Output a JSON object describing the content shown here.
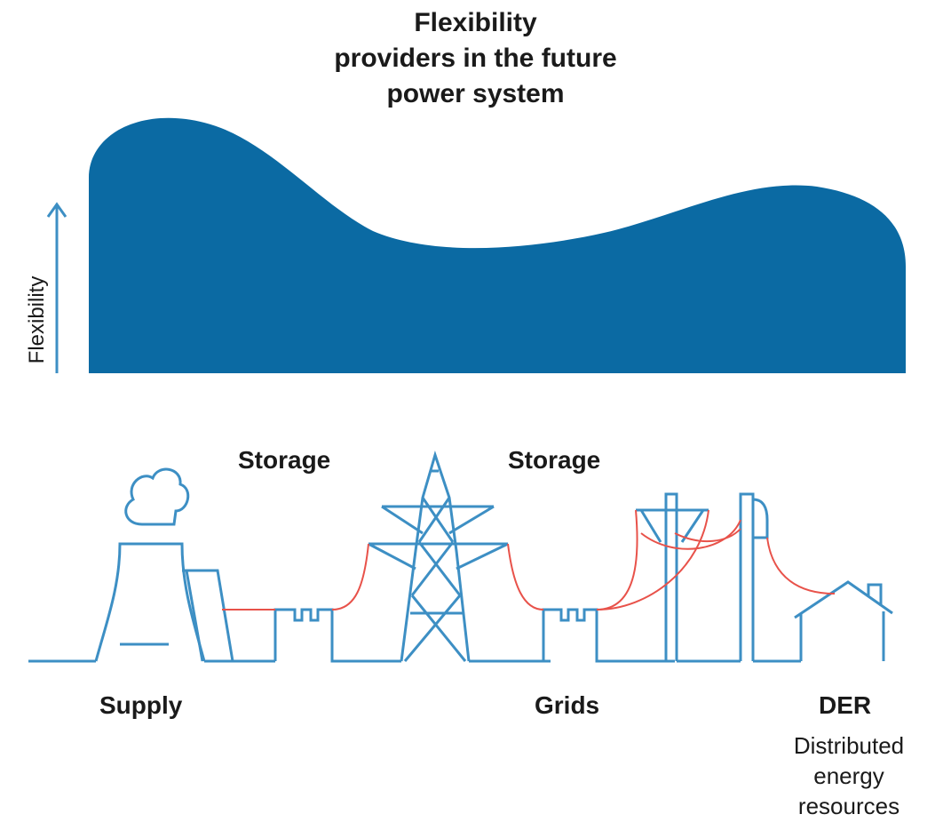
{
  "title": {
    "line1": "Flexibility",
    "line2": "providers in the future",
    "line3": "power system"
  },
  "axis": {
    "y_label": "Flexibility"
  },
  "labels": {
    "storage_left": "Storage",
    "storage_right": "Storage",
    "supply": "Supply",
    "grids": "Grids",
    "der": "DER",
    "der_line1": "Distributed",
    "der_line2": "energy",
    "der_line3": "resources"
  },
  "colors": {
    "area_fill": "#0b6aa3",
    "outline": "#3d8fc4",
    "power_line": "#e8524a",
    "text": "#1a1a1a"
  }
}
